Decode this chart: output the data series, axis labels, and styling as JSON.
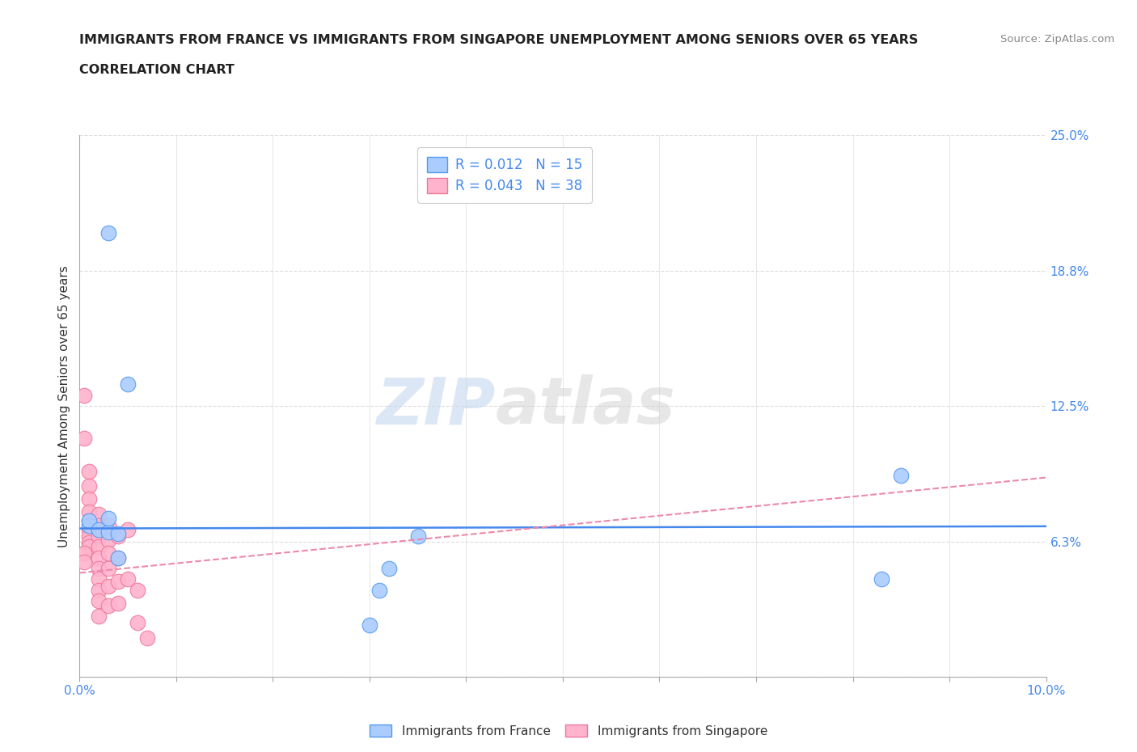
{
  "title_line1": "IMMIGRANTS FROM FRANCE VS IMMIGRANTS FROM SINGAPORE UNEMPLOYMENT AMONG SENIORS OVER 65 YEARS",
  "title_line2": "CORRELATION CHART",
  "source": "Source: ZipAtlas.com",
  "ylabel": "Unemployment Among Seniors over 65 years",
  "xlim": [
    0.0,
    0.1
  ],
  "ylim": [
    0.0,
    0.25
  ],
  "xticks": [
    0.0,
    0.01,
    0.02,
    0.03,
    0.04,
    0.05,
    0.06,
    0.07,
    0.08,
    0.09,
    0.1
  ],
  "ytick_vals": [
    0.0,
    0.0625,
    0.125,
    0.1875,
    0.25
  ],
  "ytick_labels": [
    "",
    "6.3%",
    "12.5%",
    "18.8%",
    "25.0%"
  ],
  "france_color": "#aaccff",
  "singapore_color": "#ffb3cc",
  "france_edge_color": "#5599ee",
  "singapore_edge_color": "#ee7799",
  "france_line_color": "#4488ee",
  "singapore_line_color": "#ee88aa",
  "france_R": 0.012,
  "france_N": 15,
  "singapore_R": 0.043,
  "singapore_N": 38,
  "watermark_zip": "ZIP",
  "watermark_atlas": "atlas",
  "background_color": "#ffffff",
  "grid_color": "#dddddd",
  "title_color": "#222222",
  "tick_color": "#4488ee",
  "france_scatter": [
    [
      0.003,
      0.205
    ],
    [
      0.005,
      0.135
    ],
    [
      0.001,
      0.07
    ],
    [
      0.001,
      0.072
    ],
    [
      0.002,
      0.068
    ],
    [
      0.003,
      0.067
    ],
    [
      0.003,
      0.073
    ],
    [
      0.004,
      0.066
    ],
    [
      0.004,
      0.055
    ],
    [
      0.032,
      0.05
    ],
    [
      0.031,
      0.04
    ],
    [
      0.035,
      0.065
    ],
    [
      0.085,
      0.093
    ],
    [
      0.083,
      0.045
    ],
    [
      0.03,
      0.024
    ]
  ],
  "singapore_scatter": [
    [
      0.0005,
      0.13
    ],
    [
      0.0005,
      0.11
    ],
    [
      0.001,
      0.095
    ],
    [
      0.001,
      0.088
    ],
    [
      0.001,
      0.082
    ],
    [
      0.001,
      0.076
    ],
    [
      0.001,
      0.072
    ],
    [
      0.001,
      0.068
    ],
    [
      0.001,
      0.065
    ],
    [
      0.001,
      0.062
    ],
    [
      0.001,
      0.06
    ],
    [
      0.0005,
      0.057
    ],
    [
      0.0005,
      0.053
    ],
    [
      0.002,
      0.075
    ],
    [
      0.002,
      0.07
    ],
    [
      0.002,
      0.065
    ],
    [
      0.002,
      0.06
    ],
    [
      0.002,
      0.055
    ],
    [
      0.002,
      0.05
    ],
    [
      0.002,
      0.045
    ],
    [
      0.002,
      0.04
    ],
    [
      0.002,
      0.035
    ],
    [
      0.002,
      0.028
    ],
    [
      0.003,
      0.07
    ],
    [
      0.003,
      0.063
    ],
    [
      0.003,
      0.057
    ],
    [
      0.003,
      0.05
    ],
    [
      0.003,
      0.042
    ],
    [
      0.003,
      0.033
    ],
    [
      0.004,
      0.065
    ],
    [
      0.004,
      0.055
    ],
    [
      0.004,
      0.044
    ],
    [
      0.004,
      0.034
    ],
    [
      0.005,
      0.068
    ],
    [
      0.005,
      0.045
    ],
    [
      0.006,
      0.04
    ],
    [
      0.006,
      0.025
    ],
    [
      0.007,
      0.018
    ]
  ],
  "france_trendline": [
    0.0,
    0.1,
    0.0685,
    0.0695
  ],
  "singapore_trendline": [
    0.0,
    0.1,
    0.048,
    0.092
  ]
}
